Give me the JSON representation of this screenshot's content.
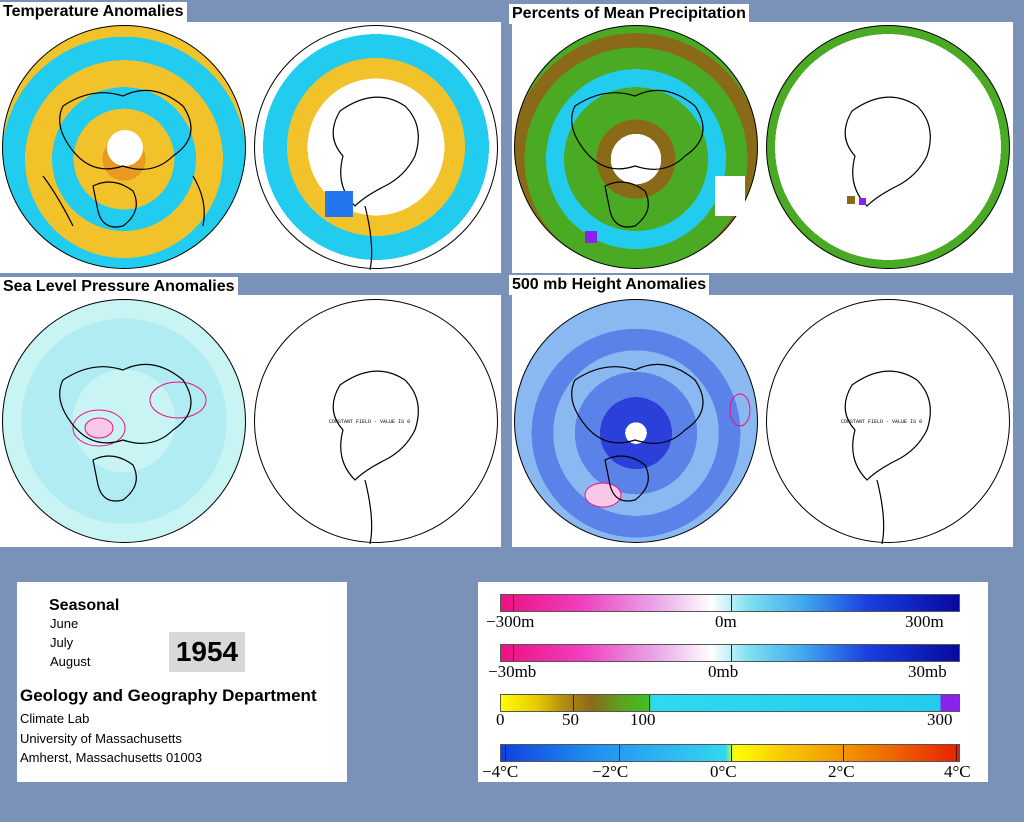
{
  "panels": {
    "temperature": {
      "title": "Temperature Anomalies"
    },
    "precipitation": {
      "title": "Percents of Mean Precipitation"
    },
    "slp": {
      "title": "Sea Level Pressure Anomalies",
      "constant_note": "CONSTANT FIELD - VALUE IS 0"
    },
    "height": {
      "title": "500 mb Height Anomalies",
      "constant_note": "CONSTANT FIELD - VALUE IS 0"
    }
  },
  "info": {
    "season": "Seasonal",
    "months": [
      "June",
      "July",
      "August"
    ],
    "year": "1954",
    "department": "Geology and Geography Department",
    "lab": "Climate Lab",
    "university": "University of Massachusetts",
    "address": "Amherst, Massachusetts 01003"
  },
  "legend": {
    "height": {
      "left": "−300m",
      "mid": "0m",
      "right": "300m"
    },
    "pressure": {
      "left": "−30mb",
      "mid": "0mb",
      "right": "30mb"
    },
    "precip": {
      "labels": [
        "0",
        "50",
        "100",
        "300"
      ]
    },
    "temp": {
      "labels": [
        "−4°C",
        "−2°C",
        "0°C",
        "2°C",
        "4°C"
      ]
    }
  },
  "colors": {
    "page_background": "#7b92b8",
    "panel": "#ffffff",
    "temp_warm": "#f2c22a",
    "temp_cool": "#22ccee",
    "precip_dry": "#8a6a18",
    "precip_green": "#4aaa24",
    "anomaly_negative": "#1020c8",
    "anomaly_positive": "#ee1080",
    "light_fill": "#c8f4f4"
  }
}
